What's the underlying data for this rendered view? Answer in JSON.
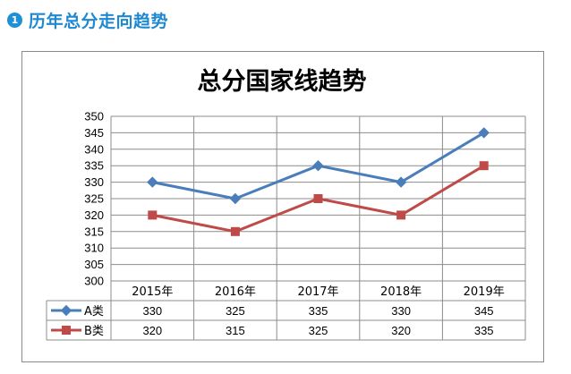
{
  "section": {
    "number": "1",
    "title": "历年总分走向趋势"
  },
  "chart_data": {
    "type": "line",
    "title": "总分国家线趋势",
    "categories": [
      "2015年",
      "2016年",
      "2017年",
      "2018年",
      "2019年"
    ],
    "ylim": [
      300,
      350
    ],
    "yticks": [
      300,
      305,
      310,
      315,
      320,
      325,
      330,
      335,
      340,
      345,
      350
    ],
    "grid": true,
    "legend": "data-table",
    "series": [
      {
        "name": "A类",
        "values": [
          330,
          325,
          335,
          330,
          345
        ],
        "color": "#4a7ebb",
        "marker": "diamond"
      },
      {
        "name": "B类",
        "values": [
          320,
          315,
          325,
          320,
          335
        ],
        "color": "#be4b48",
        "marker": "square"
      }
    ]
  }
}
